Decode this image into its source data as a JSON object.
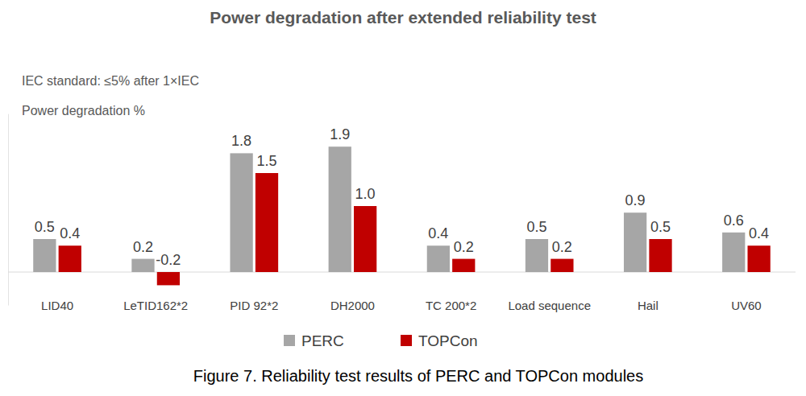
{
  "chart_data": {
    "type": "bar",
    "title": "Power degradation after extended reliability test",
    "annotations": [
      "IEC standard: ≤5% after 1×IEC",
      "Power degradation %"
    ],
    "caption": "Figure 7. Reliability test results of PERC and TOPCon modules",
    "categories": [
      "LID40",
      "LeTID162*2",
      "PID 92*2",
      "DH2000",
      "TC 200*2",
      "Load sequence",
      "Hail",
      "UV60"
    ],
    "series": [
      {
        "name": "PERC",
        "color": "#a6a6a6",
        "values": [
          0.5,
          0.2,
          1.8,
          1.9,
          0.4,
          0.5,
          0.9,
          0.6
        ],
        "value_labels": [
          "0.5",
          "0.2",
          "1.8",
          "1.9",
          "0.4",
          "0.5",
          "0.9",
          "0.6"
        ]
      },
      {
        "name": "TOPCon",
        "color": "#c00000",
        "values": [
          0.4,
          -0.2,
          1.5,
          1.0,
          0.2,
          0.2,
          0.5,
          0.4
        ],
        "value_labels": [
          "0.4",
          "-0.2",
          "1.5",
          "1.0",
          "0.2",
          "0.2",
          "0.5",
          "0.4"
        ]
      }
    ],
    "ylim": [
      -0.5,
      2.4
    ],
    "yticks": [
      0
    ],
    "tick_labels": "x",
    "data_labels": true,
    "legend": "bottom"
  }
}
